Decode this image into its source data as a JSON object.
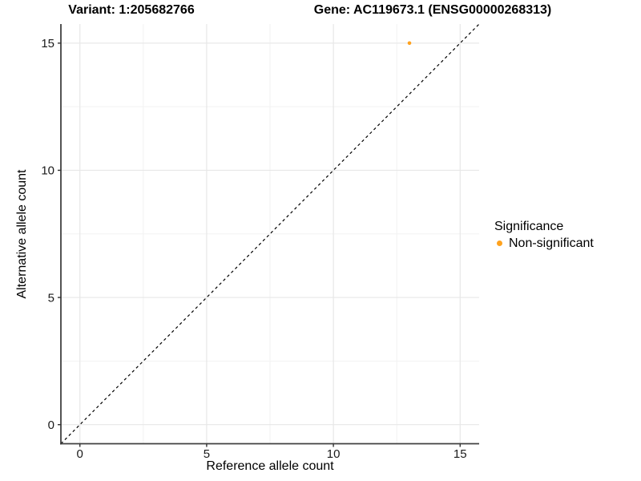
{
  "chart_data": {
    "type": "scatter",
    "title_left": "Variant: 1:205682766",
    "title_right": "Gene: AC119673.1 (ENSG00000268313)",
    "xlabel": "Reference allele count",
    "ylabel": "Alternative allele count",
    "xlim": [
      -0.75,
      15.75
    ],
    "ylim": [
      -0.75,
      15.75
    ],
    "xticks": [
      0,
      5,
      10,
      15
    ],
    "yticks": [
      0,
      5,
      10,
      15
    ],
    "x_minor_ticks": [
      2.5,
      7.5,
      12.5
    ],
    "y_minor_ticks": [
      2.5,
      7.5,
      12.5
    ],
    "grid": true,
    "points": [
      {
        "x": 13,
        "y": 15,
        "significance": "Non-significant"
      }
    ],
    "identity_line": {
      "slope": 1,
      "intercept": 0,
      "style": "dashed",
      "color": "#000000"
    },
    "legend": {
      "title": "Significance",
      "position": "right",
      "items": [
        {
          "label": "Non-significant",
          "color": "#FFA21E"
        }
      ]
    },
    "style": {
      "major_grid_color": "#e7e7e7",
      "minor_grid_color": "#f2f2f2",
      "axis_line_color": "#404040",
      "tick_color": "#333333",
      "tick_label_color": "#1a1a1a",
      "background": "#ffffff"
    }
  }
}
